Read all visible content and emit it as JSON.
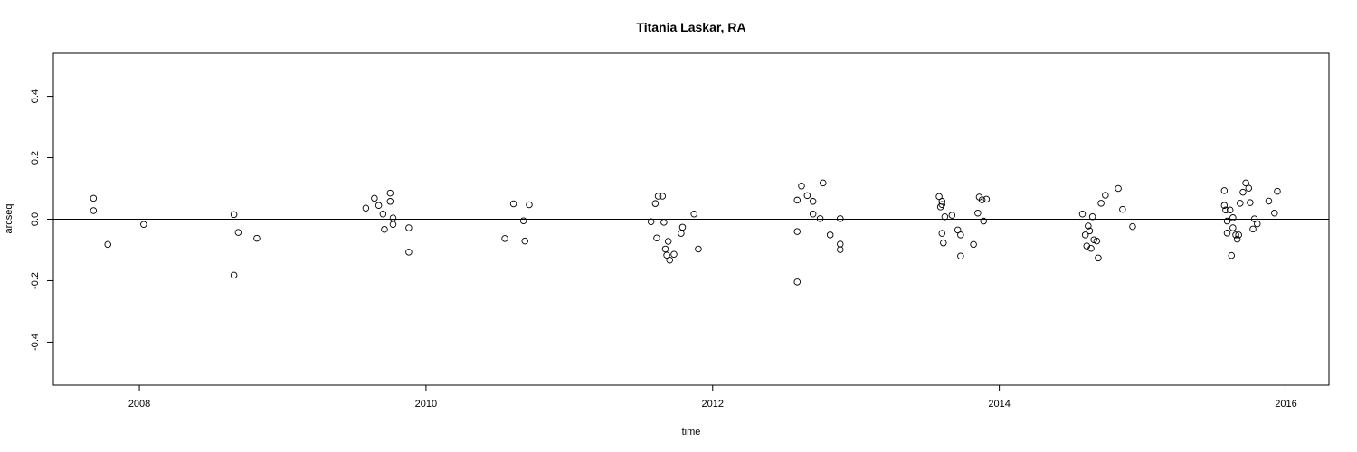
{
  "chart_data": {
    "type": "scatter",
    "title": "Titania Laskar, RA",
    "xlabel": "time",
    "ylabel": "arcseq",
    "xlim": [
      2007.4,
      2016.3
    ],
    "ylim": [
      -0.54,
      0.54
    ],
    "x_ticks": [
      2008,
      2010,
      2012,
      2014,
      2016
    ],
    "y_ticks": [
      -0.4,
      -0.2,
      0.0,
      0.2,
      0.4
    ],
    "x_tick_labels": [
      "2008",
      "2010",
      "2012",
      "2014",
      "2016"
    ],
    "y_tick_labels": [
      "-0.4",
      "-0.2",
      "0.0",
      "0.2",
      "0.4"
    ],
    "reference_line_y": 0.0,
    "grid": false,
    "legend": "none",
    "point_style": "open-circle",
    "series": [
      {
        "points": [
          [
            2007.68,
            0.068
          ],
          [
            2007.68,
            0.028
          ],
          [
            2007.78,
            -0.082
          ],
          [
            2008.03,
            -0.017
          ],
          [
            2008.66,
            0.015
          ],
          [
            2008.66,
            -0.182
          ],
          [
            2008.69,
            -0.043
          ],
          [
            2008.82,
            -0.062
          ],
          [
            2009.58,
            0.036
          ],
          [
            2009.64,
            0.068
          ],
          [
            2009.67,
            0.045
          ],
          [
            2009.7,
            0.017
          ],
          [
            2009.71,
            -0.033
          ],
          [
            2009.75,
            0.058
          ],
          [
            2009.75,
            0.085
          ],
          [
            2009.77,
            0.004
          ],
          [
            2009.77,
            -0.017
          ],
          [
            2009.88,
            -0.028
          ],
          [
            2009.88,
            -0.107
          ],
          [
            2010.55,
            -0.063
          ],
          [
            2010.61,
            0.05
          ],
          [
            2010.68,
            -0.005
          ],
          [
            2010.69,
            -0.071
          ],
          [
            2010.72,
            0.047
          ],
          [
            2011.57,
            -0.008
          ],
          [
            2011.6,
            0.051
          ],
          [
            2011.61,
            -0.061
          ],
          [
            2011.62,
            0.075
          ],
          [
            2011.65,
            0.075
          ],
          [
            2011.66,
            -0.01
          ],
          [
            2011.67,
            -0.097
          ],
          [
            2011.68,
            -0.117
          ],
          [
            2011.69,
            -0.072
          ],
          [
            2011.7,
            -0.133
          ],
          [
            2011.73,
            -0.114
          ],
          [
            2011.78,
            -0.046
          ],
          [
            2011.79,
            -0.026
          ],
          [
            2011.87,
            0.017
          ],
          [
            2011.9,
            -0.097
          ],
          [
            2012.59,
            0.062
          ],
          [
            2012.59,
            -0.04
          ],
          [
            2012.59,
            -0.204
          ],
          [
            2012.62,
            0.108
          ],
          [
            2012.66,
            0.077
          ],
          [
            2012.7,
            0.017
          ],
          [
            2012.7,
            0.058
          ],
          [
            2012.75,
            0.002
          ],
          [
            2012.77,
            0.118
          ],
          [
            2012.82,
            -0.051
          ],
          [
            2012.89,
            0.002
          ],
          [
            2012.89,
            -0.081
          ],
          [
            2012.89,
            -0.099
          ],
          [
            2013.58,
            0.074
          ],
          [
            2013.59,
            0.04
          ],
          [
            2013.6,
            0.058
          ],
          [
            2013.6,
            0.048
          ],
          [
            2013.6,
            -0.046
          ],
          [
            2013.61,
            -0.077
          ],
          [
            2013.62,
            0.008
          ],
          [
            2013.67,
            0.013
          ],
          [
            2013.71,
            -0.035
          ],
          [
            2013.73,
            -0.12
          ],
          [
            2013.73,
            -0.051
          ],
          [
            2013.82,
            -0.082
          ],
          [
            2013.85,
            0.02
          ],
          [
            2013.86,
            0.072
          ],
          [
            2013.88,
            0.063
          ],
          [
            2013.89,
            -0.006
          ],
          [
            2013.91,
            0.065
          ],
          [
            2014.58,
            0.017
          ],
          [
            2014.6,
            -0.051
          ],
          [
            2014.61,
            -0.087
          ],
          [
            2014.62,
            -0.022
          ],
          [
            2014.63,
            -0.038
          ],
          [
            2014.64,
            -0.095
          ],
          [
            2014.65,
            0.008
          ],
          [
            2014.66,
            -0.067
          ],
          [
            2014.68,
            -0.071
          ],
          [
            2014.69,
            -0.126
          ],
          [
            2014.71,
            0.052
          ],
          [
            2014.74,
            0.078
          ],
          [
            2014.83,
            0.1
          ],
          [
            2014.86,
            0.032
          ],
          [
            2014.93,
            -0.024
          ],
          [
            2015.57,
            0.093
          ],
          [
            2015.57,
            0.045
          ],
          [
            2015.58,
            0.03
          ],
          [
            2015.59,
            -0.006
          ],
          [
            2015.59,
            -0.045
          ],
          [
            2015.61,
            0.03
          ],
          [
            2015.62,
            -0.118
          ],
          [
            2015.63,
            0.005
          ],
          [
            2015.63,
            -0.028
          ],
          [
            2015.65,
            -0.051
          ],
          [
            2015.66,
            -0.065
          ],
          [
            2015.67,
            -0.051
          ],
          [
            2015.68,
            0.052
          ],
          [
            2015.7,
            0.088
          ],
          [
            2015.72,
            0.118
          ],
          [
            2015.74,
            0.101
          ],
          [
            2015.75,
            0.054
          ],
          [
            2015.77,
            -0.032
          ],
          [
            2015.78,
            0.001
          ],
          [
            2015.8,
            -0.015
          ],
          [
            2015.88,
            0.059
          ],
          [
            2015.92,
            0.02
          ],
          [
            2015.94,
            0.091
          ]
        ]
      }
    ]
  }
}
